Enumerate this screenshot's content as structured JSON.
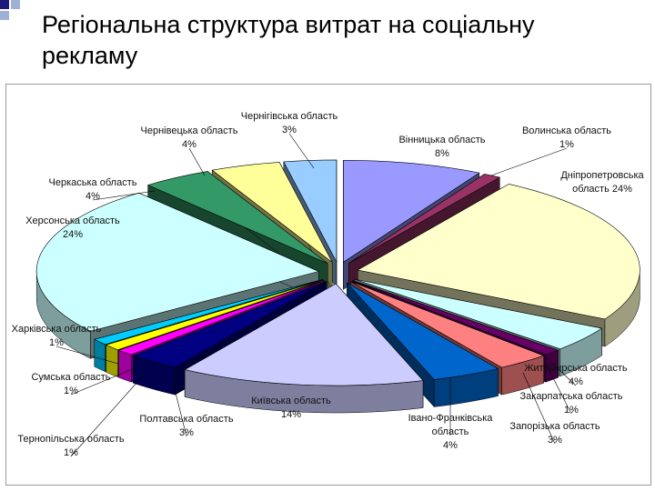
{
  "slide": {
    "title": "Регіональна структура витрат на соціальну рекламу"
  },
  "colors": {
    "bullet_dark": "#1a1a7a",
    "bullet_light": "#9db3d6"
  },
  "chart_data": {
    "type": "pie",
    "subtype": "exploded-3d",
    "title": "",
    "legend": "none",
    "slices": [
      {
        "label": "Вінницька область",
        "value": 8,
        "display": "8%",
        "color": "#9999ff"
      },
      {
        "label": "Волинська область",
        "value": 1,
        "display": "1%",
        "color": "#993366"
      },
      {
        "label": "Дніпропетровська область",
        "value": 24,
        "display": "24%",
        "color": "#ffffcc"
      },
      {
        "label": "Житомирська область",
        "value": 4,
        "display": "4%",
        "color": "#ccffff"
      },
      {
        "label": "Закарпатська область",
        "value": 1,
        "display": "1%",
        "color": "#660066"
      },
      {
        "label": "Запорізька область",
        "value": 3,
        "display": "3%",
        "color": "#ff8080"
      },
      {
        "label": "Івано-Франківська область",
        "value": 4,
        "display": "4%",
        "color": "#0066cc"
      },
      {
        "label": "Київська область",
        "value": 14,
        "display": "14%",
        "color": "#ccccff"
      },
      {
        "label": "Полтавська область",
        "value": 3,
        "display": "3%",
        "color": "#000080"
      },
      {
        "label": "Тернопільська область",
        "value": 1,
        "display": "1%",
        "color": "#ff00ff"
      },
      {
        "label": "Сумська область",
        "value": 1,
        "display": "1%",
        "color": "#ffff00"
      },
      {
        "label": "Харківська область",
        "value": 1,
        "display": "1%",
        "color": "#00ccff"
      },
      {
        "label": "Херсонська область",
        "value": 24,
        "display": "24%",
        "color": "#ccffff"
      },
      {
        "label": "Черкаська область",
        "value": 4,
        "display": "4%",
        "color": "#339966"
      },
      {
        "label": "Чернівецька область",
        "value": 4,
        "display": "4%",
        "color": "#ffff99"
      },
      {
        "label": "Чернігівська область",
        "value": 3,
        "display": "3%",
        "color": "#99ccff"
      }
    ]
  }
}
